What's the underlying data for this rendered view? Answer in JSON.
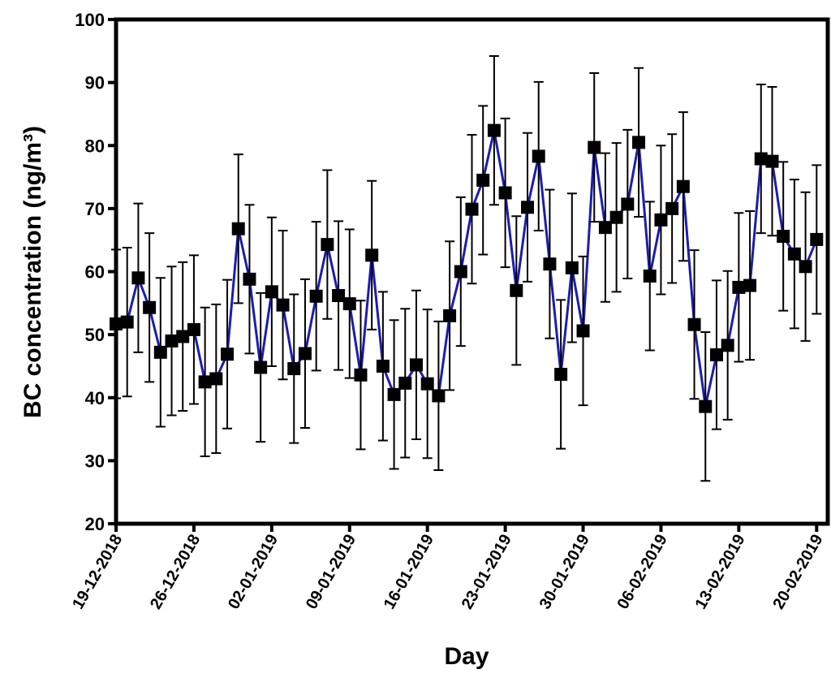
{
  "chart_data": {
    "type": "line",
    "x_label": "Day",
    "y_label": "BC concentration (ng/m³)",
    "x": [
      0,
      1,
      2,
      3,
      4,
      5,
      6,
      7,
      8,
      9,
      10,
      11,
      12,
      13,
      14,
      15,
      16,
      17,
      18,
      19,
      20,
      21,
      22,
      23,
      24,
      25,
      26,
      27,
      28,
      29,
      30,
      31,
      32,
      33,
      34,
      35,
      36,
      37,
      38,
      39,
      40,
      41,
      42,
      43,
      44,
      45,
      46,
      47,
      48,
      49,
      50,
      51,
      52,
      53,
      54,
      55,
      56,
      57,
      58,
      59,
      60,
      61,
      62,
      63
    ],
    "series": [
      {
        "color": "#1c1cb0",
        "marker_color": "#000000",
        "values": [
          51.7,
          52,
          59,
          54.3,
          47.2,
          49,
          49.7,
          50.8,
          42.5,
          43,
          46.9,
          66.8,
          58.8,
          44.8,
          56.8,
          54.7,
          44.6,
          47,
          56.1,
          64.3,
          56.2,
          54.9,
          43.6,
          62.6,
          45,
          40.5,
          42.3,
          45.2,
          42.2,
          40.3,
          53,
          60,
          69.9,
          74.5,
          82.4,
          72.5,
          57,
          70.2,
          78.3,
          61.2,
          43.7,
          60.6,
          50.6,
          79.7,
          67,
          68.6,
          70.7,
          80.5,
          59.3,
          68.2,
          70,
          73.5,
          51.6,
          38.6,
          46.8,
          48.3,
          57.5,
          57.8,
          77.9,
          77.5,
          65.6,
          62.8,
          60.8,
          65.1
        ],
        "errors": [
          11.8,
          11.8,
          11.8,
          11.8,
          11.8,
          11.8,
          11.8,
          11.8,
          11.8,
          11.8,
          11.8,
          11.8,
          11.8,
          11.8,
          11.8,
          11.8,
          11.8,
          11.8,
          11.8,
          11.8,
          11.8,
          11.8,
          11.8,
          11.8,
          11.8,
          11.8,
          11.8,
          11.8,
          11.8,
          11.8,
          11.8,
          11.8,
          11.8,
          11.8,
          11.8,
          11.8,
          11.8,
          11.8,
          11.8,
          11.8,
          11.8,
          11.8,
          11.8,
          11.8,
          11.8,
          11.8,
          11.8,
          11.8,
          11.8,
          11.8,
          11.8,
          11.8,
          11.8,
          11.8,
          11.8,
          11.8,
          11.8,
          11.8,
          11.8,
          11.8,
          11.8,
          11.8,
          11.8,
          11.8
        ]
      }
    ],
    "xlim": [
      0,
      64
    ],
    "xticks": [
      {
        "value": 0,
        "label": "19-12-2018"
      },
      {
        "value": 7,
        "label": "26-12-2018"
      },
      {
        "value": 14,
        "label": "02-01-2019"
      },
      {
        "value": 21,
        "label": "09-01-2019"
      },
      {
        "value": 28,
        "label": "16-01-2019"
      },
      {
        "value": 35,
        "label": "23-01-2019"
      },
      {
        "value": 42,
        "label": "30-01-2019"
      },
      {
        "value": 49,
        "label": "06-02-2019"
      },
      {
        "value": 56,
        "label": "13-02-2019"
      },
      {
        "value": 63,
        "label": "20-02-2019"
      }
    ],
    "ylim": [
      20,
      100
    ],
    "yticks": [
      20,
      30,
      40,
      50,
      60,
      70,
      80,
      90,
      100
    ]
  }
}
